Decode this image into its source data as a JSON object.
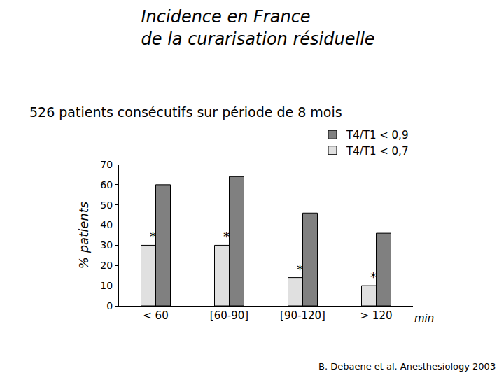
{
  "chart_data": {
    "type": "bar",
    "title": [
      "Incidence en France",
      "de la curarisation résiduelle"
    ],
    "subtitle": "526 patients consécutifs sur période de 8 mois",
    "y_label": "% patients",
    "x_label": "min",
    "source": "B. Debaene et al. Anesthesiology 2003",
    "categories": [
      "< 60",
      "[60-90]",
      "[90-120]",
      "> 120"
    ],
    "series": [
      {
        "name": "T4/T1 < 0,7",
        "color": "#e0e0e0",
        "values": [
          30,
          30,
          14,
          10
        ]
      },
      {
        "name": "T4/T1 < 0,9",
        "color": "#808080",
        "values": [
          60,
          64,
          46,
          36
        ]
      }
    ],
    "annotations": [
      {
        "text": "*",
        "category": "< 60",
        "series": "T4/T1 < 0,7"
      },
      {
        "text": "*",
        "category": "[60-90]",
        "series": "T4/T1 < 0,7"
      },
      {
        "text": "*",
        "category": "[90-120]",
        "series": "T4/T1 < 0,7"
      },
      {
        "text": "*",
        "category": "> 120",
        "series": "T4/T1 < 0,7"
      }
    ],
    "ylim": [
      0,
      70
    ],
    "yticks": [
      0,
      10,
      20,
      30,
      40,
      50,
      60,
      70
    ],
    "legend": "top right",
    "grid": false,
    "data_labels": false
  }
}
